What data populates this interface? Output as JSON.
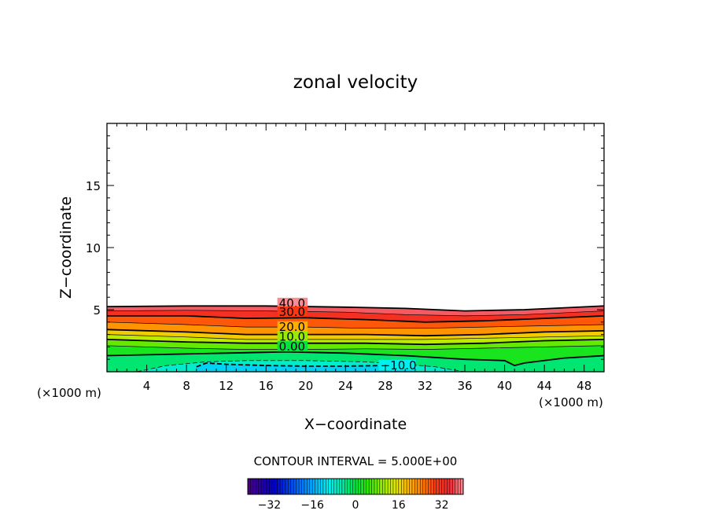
{
  "chart_data": {
    "type": "contour",
    "title": "zonal velocity",
    "xlabel": "X−coordinate",
    "ylabel": "Z−coordinate",
    "x_unit_label": "(×1000 m)",
    "y_unit_label": "(×1000 m)",
    "xlim": [
      0,
      50
    ],
    "ylim": [
      0,
      20
    ],
    "x_ticks": [
      4,
      8,
      12,
      16,
      20,
      24,
      28,
      32,
      36,
      40,
      44,
      48
    ],
    "y_ticks": [
      5,
      10,
      15
    ],
    "contour_interval_text": "CONTOUR INTERVAL = 5.000E+00",
    "contour_labels": [
      {
        "text": "40.0",
        "x": 17.3,
        "z": 5.2
      },
      {
        "text": "30.0",
        "x": 17.3,
        "z": 4.5
      },
      {
        "text": "20.0",
        "x": 17.3,
        "z": 3.3
      },
      {
        "text": "10.0",
        "x": 17.3,
        "z": 2.5
      },
      {
        "text": "0.00",
        "x": 17.3,
        "z": 1.7
      },
      {
        "text": "−10.0",
        "x": 27.5,
        "z": 0.2
      }
    ],
    "contour_lines": [
      {
        "level": 40,
        "points": [
          [
            0,
            5.25
          ],
          [
            8,
            5.3
          ],
          [
            16,
            5.3
          ],
          [
            24,
            5.2
          ],
          [
            30,
            5.1
          ],
          [
            36,
            4.9
          ],
          [
            42,
            5.0
          ],
          [
            50,
            5.3
          ]
        ]
      },
      {
        "level": 35,
        "points": [
          [
            0,
            4.9
          ],
          [
            8,
            4.95
          ],
          [
            16,
            4.9
          ],
          [
            24,
            4.8
          ],
          [
            30,
            4.6
          ],
          [
            36,
            4.5
          ],
          [
            42,
            4.6
          ],
          [
            50,
            4.9
          ]
        ]
      },
      {
        "level": 30,
        "points": [
          [
            0,
            4.5
          ],
          [
            8,
            4.5
          ],
          [
            14,
            4.3
          ],
          [
            20,
            4.35
          ],
          [
            26,
            4.2
          ],
          [
            32,
            4.0
          ],
          [
            38,
            4.1
          ],
          [
            44,
            4.3
          ],
          [
            50,
            4.5
          ]
        ]
      },
      {
        "level": 25,
        "points": [
          [
            0,
            4.0
          ],
          [
            8,
            3.8
          ],
          [
            14,
            3.6
          ],
          [
            20,
            3.6
          ],
          [
            26,
            3.5
          ],
          [
            32,
            3.5
          ],
          [
            38,
            3.6
          ],
          [
            44,
            3.7
          ],
          [
            50,
            3.8
          ]
        ]
      },
      {
        "level": 20,
        "points": [
          [
            0,
            3.4
          ],
          [
            8,
            3.2
          ],
          [
            14,
            3.0
          ],
          [
            20,
            3.0
          ],
          [
            26,
            3.0
          ],
          [
            32,
            2.9
          ],
          [
            38,
            3.0
          ],
          [
            44,
            3.2
          ],
          [
            50,
            3.3
          ]
        ]
      },
      {
        "level": 15,
        "points": [
          [
            0,
            3.0
          ],
          [
            8,
            2.8
          ],
          [
            14,
            2.6
          ],
          [
            20,
            2.6
          ],
          [
            26,
            2.6
          ],
          [
            32,
            2.6
          ],
          [
            38,
            2.7
          ],
          [
            44,
            2.8
          ],
          [
            50,
            2.9
          ]
        ]
      },
      {
        "level": 10,
        "points": [
          [
            0,
            2.6
          ],
          [
            8,
            2.4
          ],
          [
            14,
            2.3
          ],
          [
            20,
            2.3
          ],
          [
            26,
            2.3
          ],
          [
            32,
            2.2
          ],
          [
            38,
            2.3
          ],
          [
            44,
            2.5
          ],
          [
            50,
            2.6
          ]
        ]
      },
      {
        "level": 5,
        "points": [
          [
            0,
            2.1
          ],
          [
            8,
            1.9
          ],
          [
            14,
            1.8
          ],
          [
            20,
            1.8
          ],
          [
            26,
            1.85
          ],
          [
            32,
            1.8
          ],
          [
            38,
            1.9
          ],
          [
            44,
            2.0
          ],
          [
            50,
            2.1
          ]
        ]
      },
      {
        "level": 0,
        "points": [
          [
            0,
            1.3
          ],
          [
            6,
            1.4
          ],
          [
            12,
            1.5
          ],
          [
            18,
            1.6
          ],
          [
            24,
            1.5
          ],
          [
            30,
            1.3
          ],
          [
            36,
            1.0
          ],
          [
            40,
            0.9
          ],
          [
            41,
            0.5
          ],
          [
            42,
            0.7
          ],
          [
            46,
            1.1
          ],
          [
            50,
            1.3
          ]
        ]
      },
      {
        "level": -5,
        "points": [
          [
            3,
            0
          ],
          [
            6,
            0.5
          ],
          [
            10,
            0.8
          ],
          [
            14,
            0.9
          ],
          [
            20,
            0.9
          ],
          [
            26,
            0.8
          ],
          [
            30,
            0.6
          ],
          [
            33,
            0.4
          ],
          [
            36,
            0
          ]
        ]
      },
      {
        "level": -10,
        "points": [
          [
            9,
            0.4
          ],
          [
            10,
            0.7
          ],
          [
            12,
            0.6
          ],
          [
            16,
            0.5
          ],
          [
            20,
            0.45
          ],
          [
            24,
            0.45
          ],
          [
            28,
            0.5
          ],
          [
            30,
            0.7
          ],
          [
            31,
            0.4
          ]
        ]
      }
    ],
    "colorbar": {
      "min": -40,
      "max": 40,
      "ticks": [
        -32,
        -16,
        0,
        16,
        32
      ]
    }
  }
}
